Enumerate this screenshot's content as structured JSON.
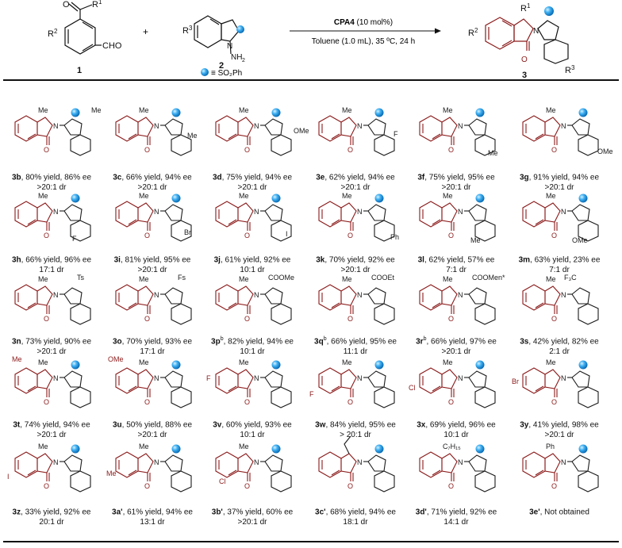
{
  "scheme": {
    "reactant1": {
      "r1": "R",
      "r1_sup": "1",
      "r2": "R",
      "r2_sup": "2",
      "aldehyde": "CHO",
      "oxygen": "O",
      "number": "1"
    },
    "plus": "+",
    "reactant2": {
      "r3": "R",
      "r3_sup": "3",
      "nitrogen": "N",
      "amine": "NH",
      "amine_sub": "2",
      "number": "2"
    },
    "conditions": {
      "catalyst": "CPA4",
      "loading": " (10 mol%)",
      "details": "Toluene (1.0 mL), 35 ºC, 24 h"
    },
    "legend": "≡ SO₂Ph",
    "product": {
      "r1": "R",
      "r1_sup": "1",
      "r2": "R",
      "r2_sup": "2",
      "r3": "R",
      "r3_sup": "3",
      "number": "3"
    }
  },
  "structure_labels": {
    "me": "Me",
    "ts": "Ts",
    "fs": "Fs",
    "coome": "COOMe",
    "cooet": "COOEt",
    "coomen": "COOMen*",
    "cf3": "F₃C",
    "ome": "OMe",
    "f": "F",
    "br": "Br",
    "i": "I",
    "ph": "Ph",
    "cl": "Cl",
    "c7h15": "C₇H₁₅",
    "n": "N",
    "o": "O"
  },
  "entries": [
    {
      "id": "3b",
      "sup": "",
      "line1": ", 80% yield, 86% ee",
      "line2": ">20:1 dr"
    },
    {
      "id": "3c",
      "sup": "",
      "line1": ", 66% yield, 94% ee",
      "line2": ">20:1 dr"
    },
    {
      "id": "3d",
      "sup": "",
      "line1": ", 75% yield, 94% ee",
      "line2": ">20:1 dr"
    },
    {
      "id": "3e",
      "sup": "",
      "line1": ", 62% yield, 94% ee",
      "line2": ">20:1 dr"
    },
    {
      "id": "3f",
      "sup": "",
      "line1": ", 75% yield, 95% ee",
      "line2": ">20:1 dr"
    },
    {
      "id": "3g",
      "sup": "",
      "line1": ", 91% yield, 94% ee",
      "line2": ">20:1 dr"
    },
    {
      "id": "3h",
      "sup": "",
      "line1": ", 66% yield, 96% ee",
      "line2": "17:1 dr"
    },
    {
      "id": "3i",
      "sup": "",
      "line1": ", 81% yield, 95% ee",
      "line2": ">20:1 dr"
    },
    {
      "id": "3j",
      "sup": "",
      "line1": ", 61% yield, 92% ee",
      "line2": "10:1 dr"
    },
    {
      "id": "3k",
      "sup": "",
      "line1": ", 70% yield, 92% ee",
      "line2": ">20:1 dr"
    },
    {
      "id": "3l",
      "sup": "",
      "line1": ", 62% yield, 57% ee",
      "line2": "7:1 dr"
    },
    {
      "id": "3m",
      "sup": "",
      "line1": ", 63% yield, 23% ee",
      "line2": "7:1 dr"
    },
    {
      "id": "3n",
      "sup": "",
      "line1": ", 73% yield, 90% ee",
      "line2": ">20:1 dr"
    },
    {
      "id": "3o",
      "sup": "",
      "line1": ", 70% yield, 93% ee",
      "line2": "17:1 dr"
    },
    {
      "id": "3p",
      "sup": "b",
      "line1": ", 82% yield, 94% ee",
      "line2": "10:1 dr"
    },
    {
      "id": "3q",
      "sup": "b",
      "line1": ", 66% yield, 95% ee",
      "line2": "11:1 dr"
    },
    {
      "id": "3r",
      "sup": "b",
      "line1": ", 66% yield, 97% ee",
      "line2": ">20:1 dr"
    },
    {
      "id": "3s",
      "sup": "",
      "line1": ", 42% yield, 82% ee",
      "line2": "2:1 dr"
    },
    {
      "id": "3t",
      "sup": "",
      "line1": ", 74% yield, 94% ee",
      "line2": ">20:1 dr"
    },
    {
      "id": "3u",
      "sup": "",
      "line1": ", 50% yield, 88% ee",
      "line2": ">20:1 dr"
    },
    {
      "id": "3v",
      "sup": "",
      "line1": ", 60% yield, 93% ee",
      "line2": "10:1 dr"
    },
    {
      "id": "3w",
      "sup": "",
      "line1": ", 84% yield, 95% ee",
      "line2": "> 20:1 dr"
    },
    {
      "id": "3x",
      "sup": "",
      "line1": ", 69% yield, 96% ee",
      "line2": "10:1 dr"
    },
    {
      "id": "3y",
      "sup": "",
      "line1": ", 41% yield, 98% ee",
      "line2": ">20:1 dr"
    },
    {
      "id": "3z",
      "sup": "",
      "line1": ", 33% yield, 92% ee",
      "line2": "20:1 dr"
    },
    {
      "id": "3a'",
      "sup": "",
      "line1": ", 61% yield, 94% ee",
      "line2": "13:1 dr"
    },
    {
      "id": "3b'",
      "sup": "",
      "line1": ", 37% yield, 60% ee",
      "line2": ">20:1 dr"
    },
    {
      "id": "3c'",
      "sup": "",
      "line1": ", 68% yield, 94% ee",
      "line2": "18:1 dr"
    },
    {
      "id": "3d'",
      "sup": "",
      "line1": ", 71% yield, 92% ee",
      "line2": "14:1 dr"
    },
    {
      "id": "3e'",
      "sup": "",
      "line1": ", Not obtained",
      "line2": ""
    }
  ],
  "colors": {
    "isoindolinone": "#8b1a1a",
    "indole": "#1a1a1a",
    "sphere": "#29a3ec"
  }
}
